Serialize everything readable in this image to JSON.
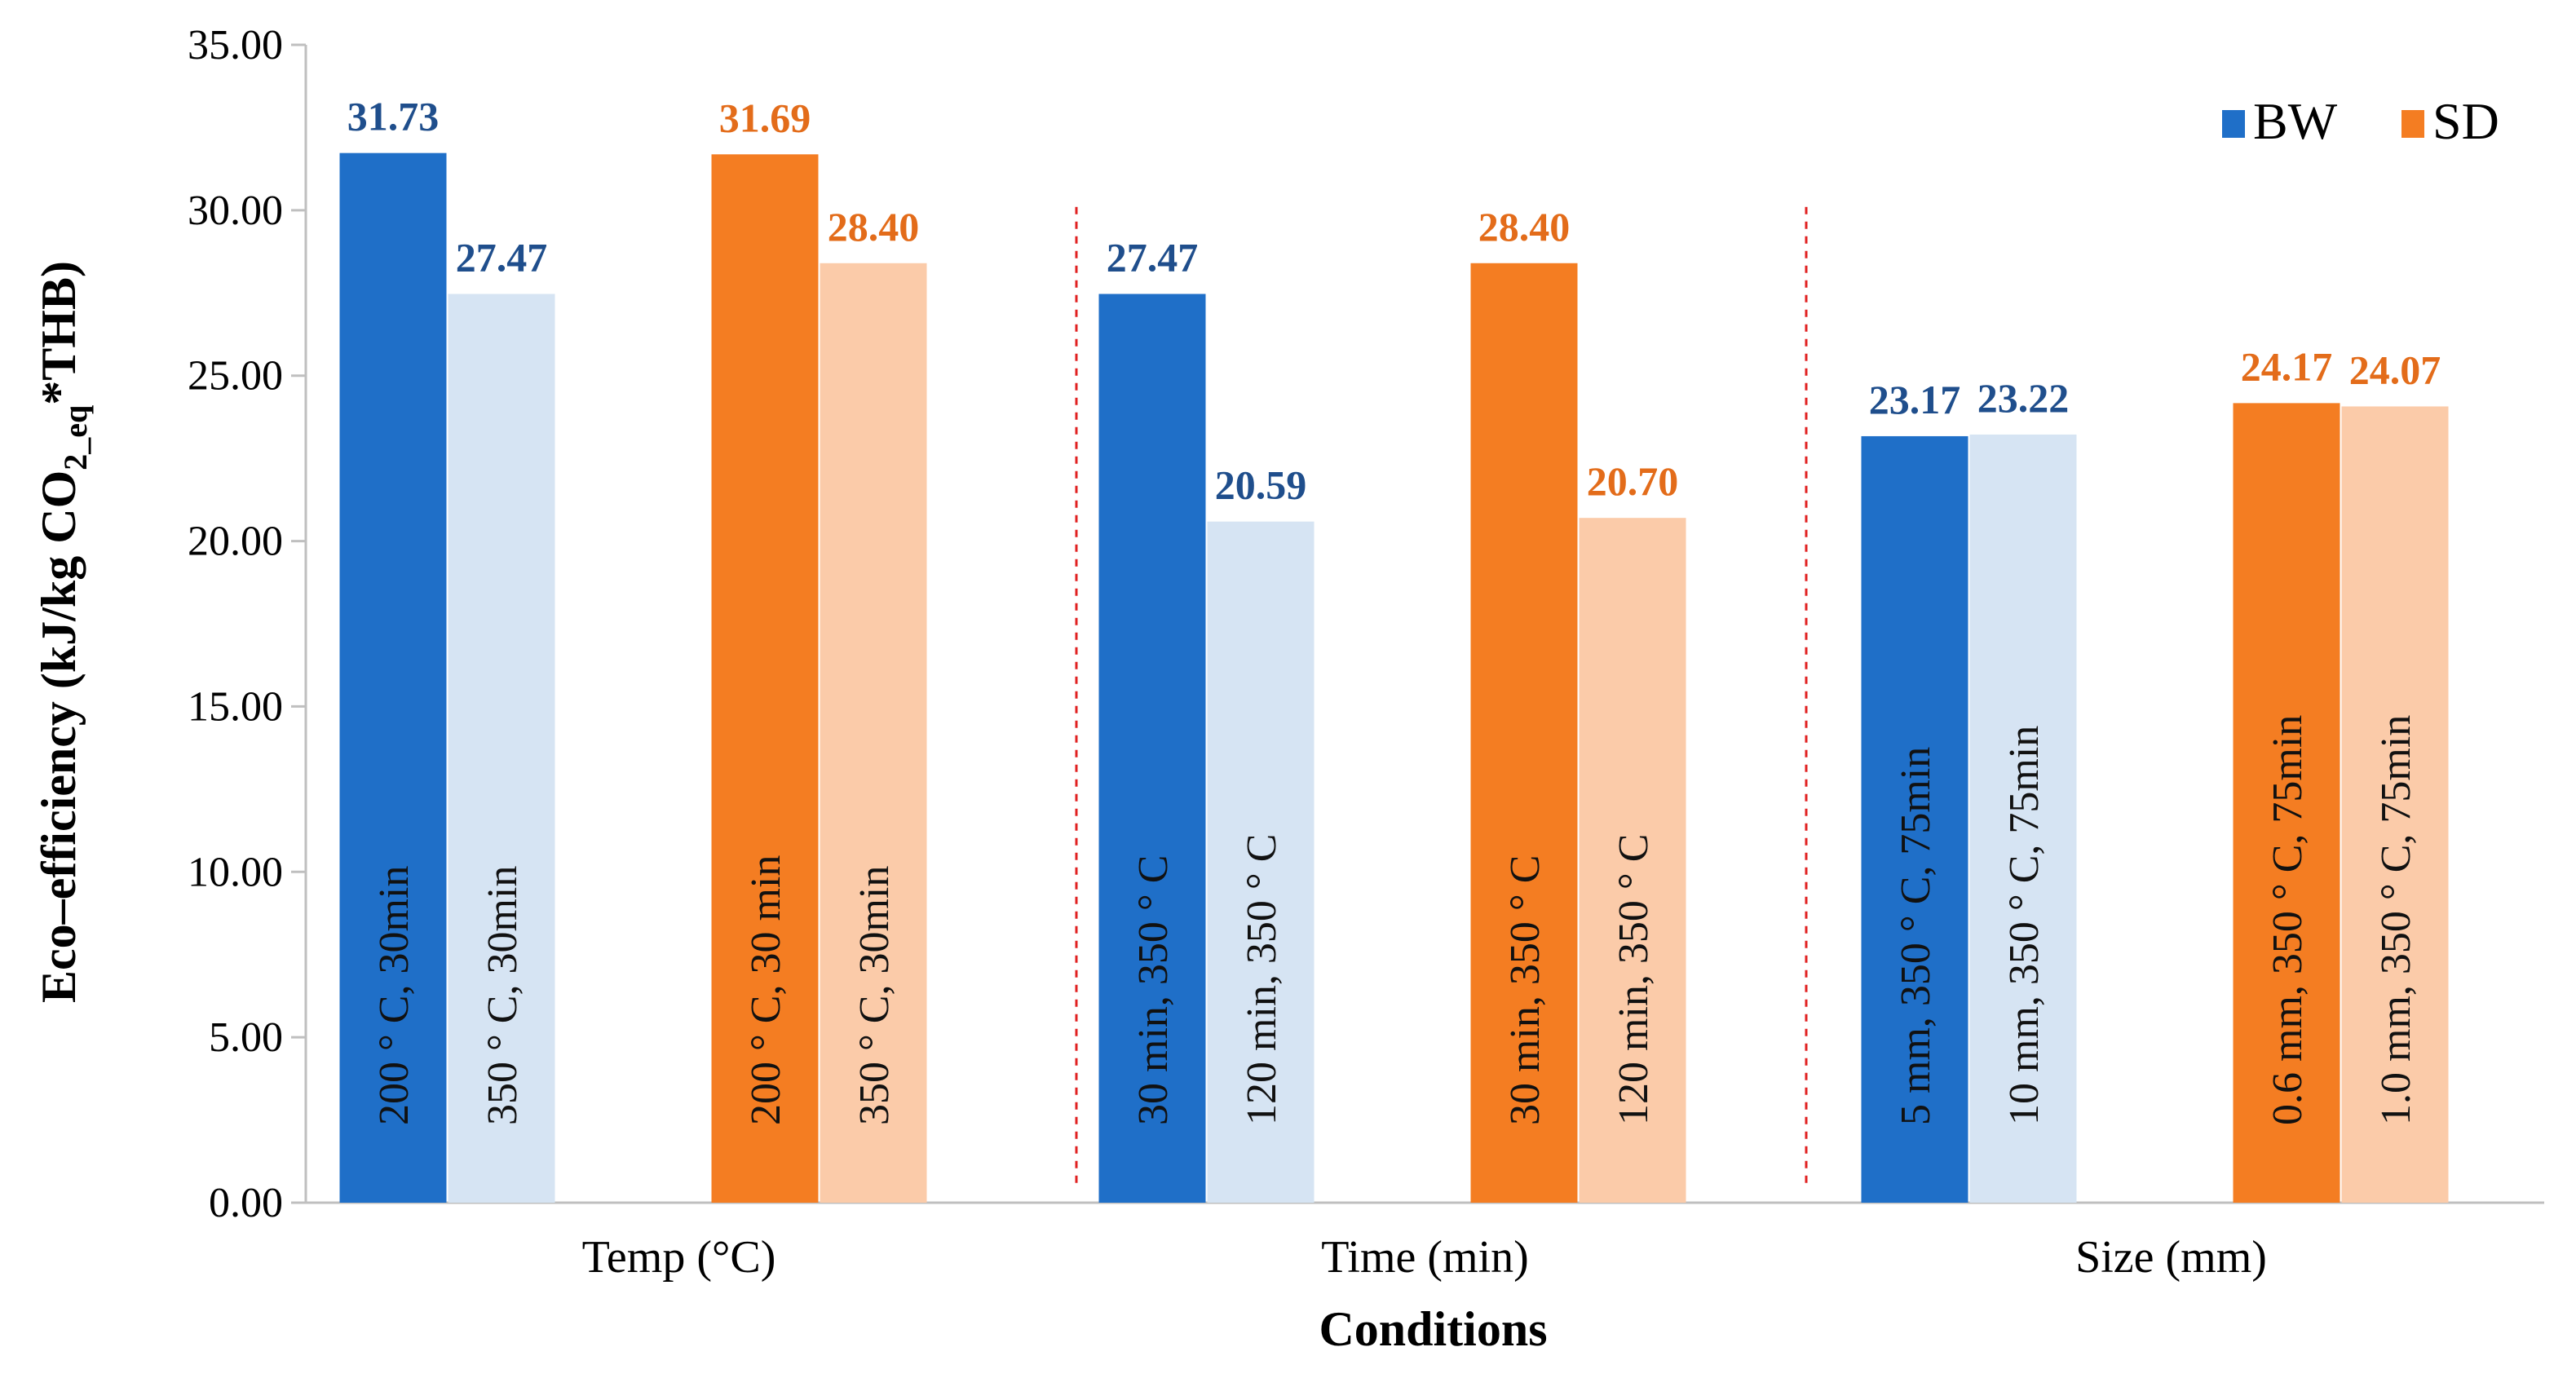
{
  "chart_data": {
    "type": "bar",
    "title": "",
    "xlabel": "Conditions",
    "ylabel_parts": [
      "Eco–efficiency (kJ/kg CO",
      "2_eq",
      "*THB)"
    ],
    "ylim": [
      0,
      35
    ],
    "yticks": [
      "0.00",
      "5.00",
      "10.00",
      "15.00",
      "20.00",
      "25.00",
      "30.00",
      "35.00"
    ],
    "legend_position": "top-right",
    "legend": [
      {
        "name": "BW",
        "color": "#1f6fc8"
      },
      {
        "name": "SD",
        "color": "#f47d22"
      }
    ],
    "groups": [
      {
        "label": "Temp (°C)",
        "bars": [
          {
            "series": "BW",
            "value": 31.73,
            "value_text": "31.73",
            "condition": "200 ° C, 30min",
            "color": "#1f6fc8",
            "label_color": "#1f4e8c"
          },
          {
            "series": "BW",
            "value": 27.47,
            "value_text": "27.47",
            "condition": "350 ° C, 30min",
            "color": "#d6e4f3",
            "label_color": "#1f4e8c"
          },
          {
            "series": "SD",
            "value": 31.69,
            "value_text": "31.69",
            "condition": "200 ° C, 30 min",
            "color": "#f47d22",
            "label_color": "#e36c1a"
          },
          {
            "series": "SD",
            "value": 28.4,
            "value_text": "28.40",
            "condition": "350 ° C, 30min",
            "color": "#fbcba9",
            "label_color": "#e36c1a"
          }
        ]
      },
      {
        "label": "Time (min)",
        "bars": [
          {
            "series": "BW",
            "value": 27.47,
            "value_text": "27.47",
            "condition": "30  min, 350 ° C",
            "color": "#1f6fc8",
            "label_color": "#1f4e8c"
          },
          {
            "series": "BW",
            "value": 20.59,
            "value_text": "20.59",
            "condition": "120  min, 350 ° C",
            "color": "#d6e4f3",
            "label_color": "#1f4e8c"
          },
          {
            "series": "SD",
            "value": 28.4,
            "value_text": "28.40",
            "condition": "30  min, 350 ° C",
            "color": "#f47d22",
            "label_color": "#e36c1a"
          },
          {
            "series": "SD",
            "value": 20.7,
            "value_text": "20.70",
            "condition": "120  min, 350 ° C",
            "color": "#fbcba9",
            "label_color": "#e36c1a"
          }
        ]
      },
      {
        "label": "Size (mm)",
        "bars": [
          {
            "series": "BW",
            "value": 23.17,
            "value_text": "23.17",
            "condition": "5 mm, 350 ° C, 75min",
            "color": "#1f6fc8",
            "label_color": "#1f4e8c"
          },
          {
            "series": "BW",
            "value": 23.22,
            "value_text": "23.22",
            "condition": "10 mm, 350 ° C, 75min",
            "color": "#d6e4f3",
            "label_color": "#1f4e8c"
          },
          {
            "series": "SD",
            "value": 24.17,
            "value_text": "24.17",
            "condition": "0.6 mm, 350 ° C, 75min",
            "color": "#f47d22",
            "label_color": "#e36c1a"
          },
          {
            "series": "SD",
            "value": 24.07,
            "value_text": "24.07",
            "condition": "1.0 mm, 350 ° C, 75min",
            "color": "#fbcba9",
            "label_color": "#e36c1a"
          }
        ]
      }
    ],
    "separator_color": "#e02020",
    "gridlines": false
  }
}
